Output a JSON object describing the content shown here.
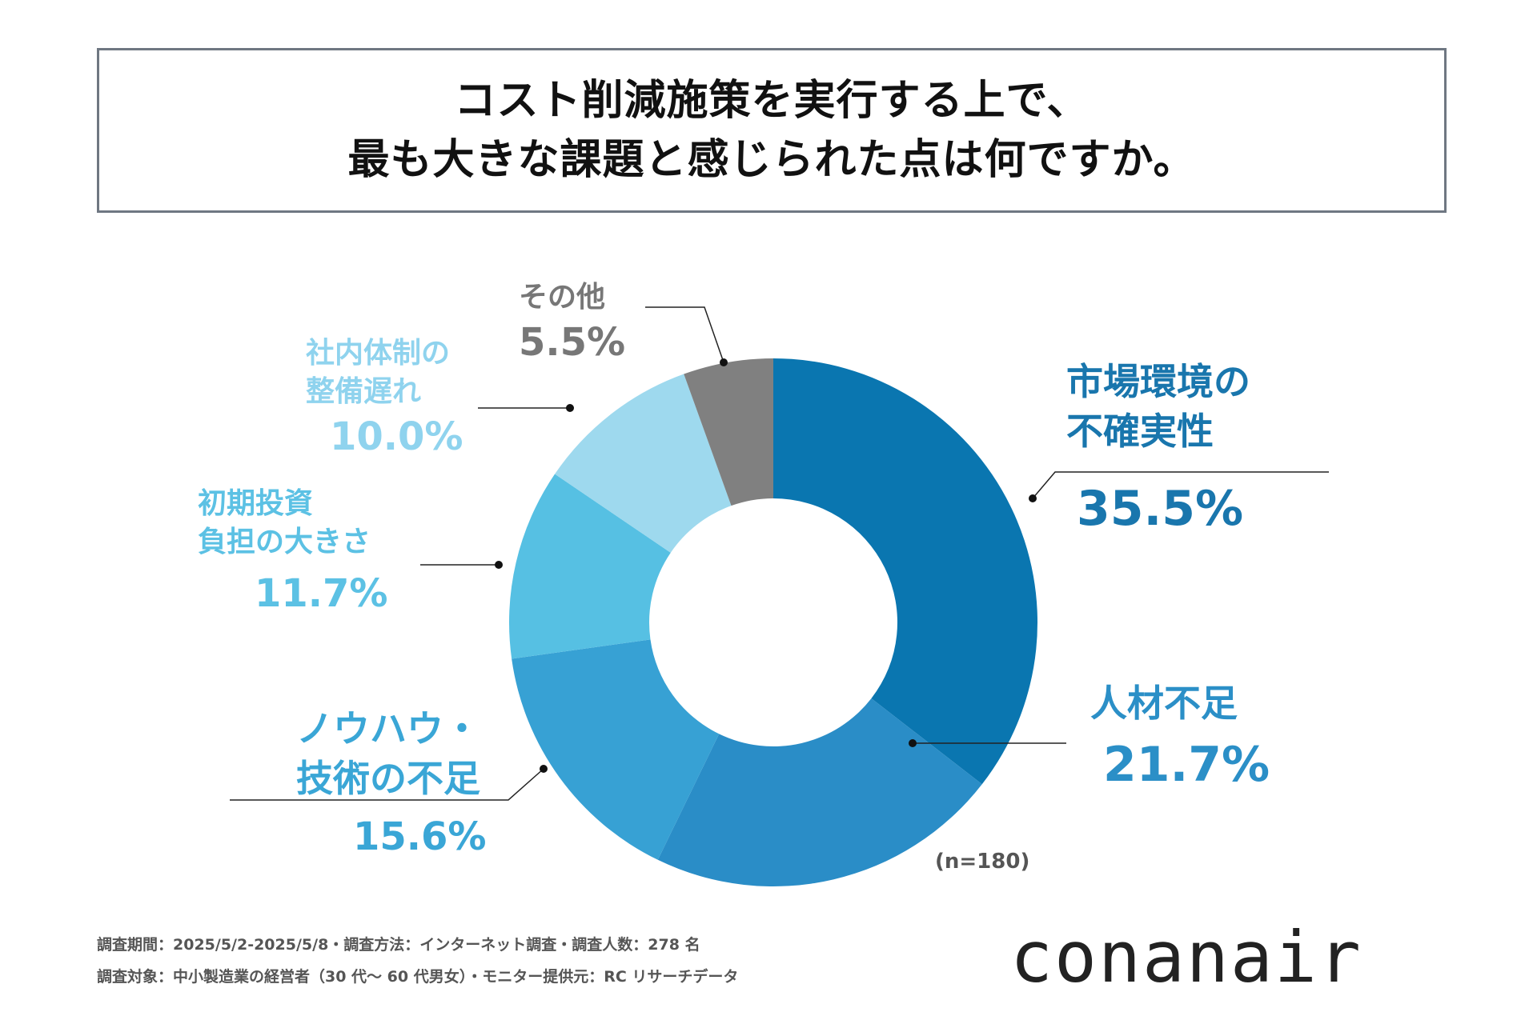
{
  "title": {
    "line1": "コスト削減施策を実行する上で、",
    "line2": "最も大きな課題と感じられた点は何ですか。"
  },
  "chart_data": {
    "type": "pie",
    "variant": "donut",
    "title": "コスト削減施策を実行する上で、最も大きな課題と感じられた点は何ですか。",
    "sample_size": "(n=180)",
    "slices": [
      {
        "name": "市場環境の不確実性",
        "label_lines": [
          "市場環境の",
          "不確実性"
        ],
        "value": 35.5,
        "display": "35.5%",
        "color": "#0a76b0"
      },
      {
        "name": "人材不足",
        "label_lines": [
          "人材不足"
        ],
        "value": 21.7,
        "display": "21.7%",
        "color": "#2a8dc7"
      },
      {
        "name": "ノウハウ・技術の不足",
        "label_lines": [
          "ノウハウ・",
          "技術の不足"
        ],
        "value": 15.6,
        "display": "15.6%",
        "color": "#37a1d4"
      },
      {
        "name": "初期投資負担の大きさ",
        "label_lines": [
          "初期投資",
          "負担の大きさ"
        ],
        "value": 11.7,
        "display": "11.7%",
        "color": "#56c0e3"
      },
      {
        "name": "社内体制の整備遅れ",
        "label_lines": [
          "社内体制の",
          "整備遅れ"
        ],
        "value": 10.0,
        "display": "10.0%",
        "color": "#9ed9ee"
      },
      {
        "name": "その他",
        "label_lines": [
          "その他"
        ],
        "value": 5.5,
        "display": "5.5%",
        "color": "#808080"
      }
    ]
  },
  "footer": {
    "line1": "調査期間：2025/5/2-2025/5/8・調査方法：インターネット調査・調査人数：278 名",
    "line2": "調査対象：中小製造業の経営者（30 代〜 60 代男女）・モニター提供元：RC リサーチデータ"
  },
  "logo": "conanair"
}
